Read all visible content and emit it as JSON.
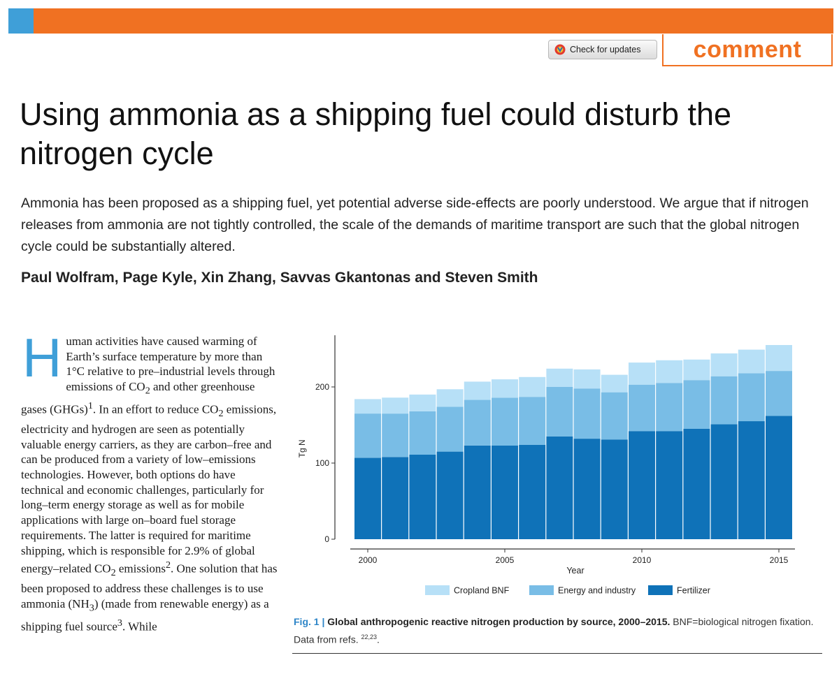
{
  "header": {
    "check_updates_label": "Check for updates",
    "section_label": "comment",
    "accent_orange": "#f07122",
    "accent_blue": "#3f9fd8"
  },
  "article": {
    "title": "Using ammonia as a shipping fuel could disturb the nitrogen cycle",
    "standfirst": "Ammonia has been proposed as a shipping fuel, yet potential adverse side-effects are poorly understood. We argue that if nitrogen releases from ammonia are not tightly controlled, the scale of the demands of maritime transport are such that the global nitrogen cycle could be substantially altered.",
    "authors": "Paul Wolfram, Page Kyle, Xin Zhang, Savvas Gkantonas and Steven Smith",
    "drop_cap": "H",
    "body_segments": [
      "uman activities have caused warming of Earth’s surface temperature by more than 1°C relative to pre–industrial levels through emissions of CO",
      "2",
      " and other greenhouse gases (GHGs)",
      "1",
      ". In an effort to reduce CO",
      "2",
      " emissions, electricity and hydrogen are seen as potentially valuable energy carriers, as they are carbon–free and can be produced from a variety of low–emissions technologies. However, both options do have technical and economic challenges, particularly for long–term energy storage as well as for mobile applications with large on–board fuel storage requirements. The latter is required for maritime shipping, which is responsible for 2.9% of global energy–related CO",
      "2",
      " emissions",
      "2",
      ". One solution that has been proposed to address these challenges is to use ammonia (NH",
      "3",
      ") (made from renewable energy) as a shipping fuel source",
      "3",
      ". While"
    ]
  },
  "caption": {
    "label": "Fig. 1 |",
    "title": "Global anthropogenic reactive nitrogen production by source, 2000–2015.",
    "text": " BNF=biological nitrogen fixation. Data from refs. ",
    "refs": "22,23",
    "end": "."
  },
  "chart_data": {
    "type": "bar",
    "stacked": true,
    "title": "",
    "xlabel": "Year",
    "ylabel": "Tg N",
    "ylim": [
      0,
      260
    ],
    "yticks": [
      0,
      100,
      200
    ],
    "xticks": [
      2000,
      2005,
      2010,
      2015
    ],
    "categories": [
      2000,
      2001,
      2002,
      2003,
      2004,
      2005,
      2006,
      2007,
      2008,
      2009,
      2010,
      2011,
      2012,
      2013,
      2014,
      2015
    ],
    "legend_position": "bottom",
    "series": [
      {
        "name": "Fertilizer",
        "color": "#0f72b8",
        "values": [
          107,
          108,
          111,
          115,
          123,
          123,
          124,
          135,
          132,
          131,
          142,
          142,
          145,
          151,
          155,
          162
        ]
      },
      {
        "name": "Energy and industry",
        "color": "#79bde6",
        "values": [
          58,
          57,
          57,
          59,
          60,
          63,
          63,
          65,
          66,
          62,
          61,
          63,
          64,
          63,
          63,
          59
        ]
      },
      {
        "name": "Cropland BNF",
        "color": "#b7e0f7",
        "values": [
          19,
          21,
          22,
          23,
          24,
          24,
          26,
          24,
          25,
          23,
          29,
          30,
          27,
          30,
          31,
          34
        ]
      }
    ],
    "legend_order": [
      "Cropland BNF",
      "Energy and industry",
      "Fertilizer"
    ]
  }
}
